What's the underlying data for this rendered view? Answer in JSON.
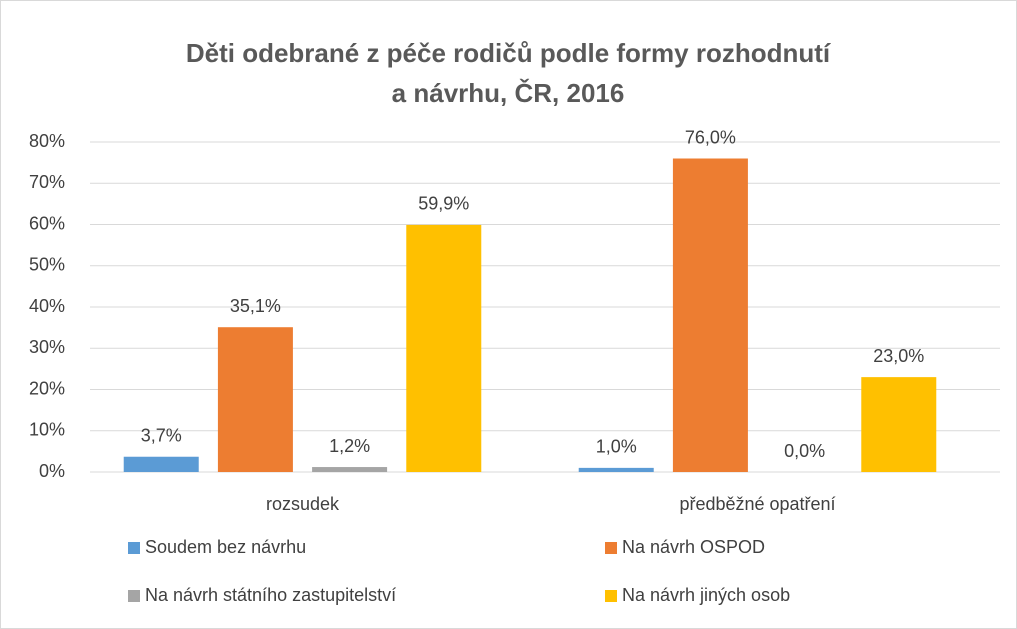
{
  "chart_data": {
    "type": "bar",
    "title": [
      "Děti odebrané z péče rodičů podle formy rozhodnutí",
      "a návrhu, ČR, 2016"
    ],
    "categories": [
      "rozsudek",
      "předběžné opatření"
    ],
    "series": [
      {
        "name": "Soudem bez návrhu",
        "color": "#5b9bd5",
        "values": [
          3.7,
          1.0
        ],
        "value_labels": [
          "3,7%",
          "1,0%"
        ]
      },
      {
        "name": "Na návrh OSPOD",
        "color": "#ed7d31",
        "values": [
          35.1,
          76.0
        ],
        "value_labels": [
          "35,1%",
          "76,0%"
        ]
      },
      {
        "name": "Na návrh státního zastupitelství",
        "color": "#a5a5a5",
        "values": [
          1.2,
          0.0
        ],
        "value_labels": [
          "1,2%",
          "0,0%"
        ]
      },
      {
        "name": "Na návrh jiných osob",
        "color": "#ffc000",
        "values": [
          59.9,
          23.0
        ],
        "value_labels": [
          "59,9%",
          "23,0%"
        ]
      }
    ],
    "ylim": [
      0,
      80
    ],
    "yticks": [
      {
        "value": 0,
        "label": "0%"
      },
      {
        "value": 10,
        "label": "10%"
      },
      {
        "value": 20,
        "label": "20%"
      },
      {
        "value": 30,
        "label": "30%"
      },
      {
        "value": 40,
        "label": "40%"
      },
      {
        "value": 50,
        "label": "50%"
      },
      {
        "value": 60,
        "label": "60%"
      },
      {
        "value": 70,
        "label": "70%"
      },
      {
        "value": 80,
        "label": "80%"
      }
    ],
    "grid": true,
    "legend": "bottom"
  }
}
